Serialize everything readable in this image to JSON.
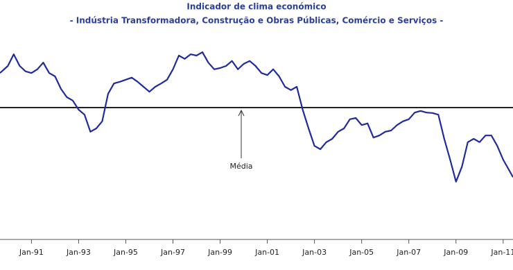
{
  "chart_data": {
    "type": "line",
    "title": "Indicador de clima económico",
    "subtitle": "- Indústria Transformadora, Construção e Obras Públicas, Comércio e Serviços -",
    "annotation": "Média",
    "mean_line": 0,
    "x": [
      "1989-09",
      "1990-01",
      "1990-04",
      "1990-07",
      "1990-10",
      "1991-01",
      "1991-04",
      "1991-07",
      "1991-10",
      "1992-01",
      "1992-04",
      "1992-07",
      "1992-10",
      "1993-01",
      "1993-04",
      "1993-07",
      "1993-10",
      "1994-01",
      "1994-04",
      "1994-07",
      "1994-10",
      "1995-01",
      "1995-04",
      "1995-07",
      "1995-10",
      "1996-01",
      "1996-04",
      "1996-07",
      "1996-10",
      "1997-01",
      "1997-04",
      "1997-07",
      "1997-10",
      "1998-01",
      "1998-04",
      "1998-07",
      "1998-10",
      "1999-01",
      "1999-04",
      "1999-07",
      "1999-10",
      "2000-01",
      "2000-04",
      "2000-07",
      "2000-10",
      "2001-01",
      "2001-04",
      "2001-07",
      "2001-10",
      "2002-01",
      "2002-04",
      "2002-07",
      "2002-10",
      "2003-01",
      "2003-04",
      "2003-07",
      "2003-10",
      "2004-01",
      "2004-04",
      "2004-07",
      "2004-10",
      "2005-01",
      "2005-04",
      "2005-07",
      "2005-10",
      "2006-01",
      "2006-04",
      "2006-07",
      "2006-10",
      "2007-01",
      "2007-04",
      "2007-07",
      "2007-10",
      "2008-01",
      "2008-04",
      "2008-07",
      "2008-10",
      "2009-01",
      "2009-04",
      "2009-07",
      "2009-10",
      "2010-01",
      "2010-04",
      "2010-07",
      "2010-10",
      "2011-01",
      "2011-04",
      "2011-06"
    ],
    "series": [
      {
        "color": "#1f2a9c",
        "values": [
          0.83,
          1.0,
          1.28,
          1.0,
          0.87,
          0.83,
          0.92,
          1.08,
          0.83,
          0.75,
          0.45,
          0.25,
          0.17,
          -0.05,
          -0.17,
          -0.58,
          -0.5,
          -0.33,
          0.33,
          0.58,
          0.62,
          0.67,
          0.72,
          0.62,
          0.5,
          0.38,
          0.5,
          0.58,
          0.67,
          0.92,
          1.25,
          1.17,
          1.28,
          1.25,
          1.33,
          1.08,
          0.92,
          0.95,
          1.0,
          1.12,
          0.92,
          1.05,
          1.12,
          1.0,
          0.83,
          0.78,
          0.92,
          0.75,
          0.5,
          0.42,
          0.5,
          -0.05,
          -0.5,
          -0.92,
          -1.0,
          -0.83,
          -0.75,
          -0.58,
          -0.5,
          -0.28,
          -0.25,
          -0.42,
          -0.38,
          -0.72,
          -0.67,
          -0.58,
          -0.55,
          -0.42,
          -0.33,
          -0.28,
          -0.12,
          -0.08,
          -0.12,
          -0.13,
          -0.17,
          -0.75,
          -1.25,
          -1.78,
          -1.42,
          -0.83,
          -0.75,
          -0.83,
          -0.67,
          -0.67,
          -0.92,
          -1.25,
          -1.5,
          -1.67
        ]
      }
    ],
    "xlim": [
      "1989-09",
      "2011-06"
    ],
    "ylim": [
      -3.2,
      1.8
    ],
    "xticks": [
      {
        "value": "1991-01",
        "label": "Jan-91"
      },
      {
        "value": "1993-01",
        "label": "Jan-93"
      },
      {
        "value": "1995-01",
        "label": "Jan-95"
      },
      {
        "value": "1997-01",
        "label": "Jan-97"
      },
      {
        "value": "1999-01",
        "label": "Jan-99"
      },
      {
        "value": "2001-01",
        "label": "Jan-01"
      },
      {
        "value": "2003-01",
        "label": "Jan-03"
      },
      {
        "value": "2005-01",
        "label": "Jan-05"
      },
      {
        "value": "2007-01",
        "label": "Jan-07"
      },
      {
        "value": "2009-01",
        "label": "Jan-09"
      },
      {
        "value": "2011-01",
        "label": "Jan-11"
      }
    ]
  }
}
